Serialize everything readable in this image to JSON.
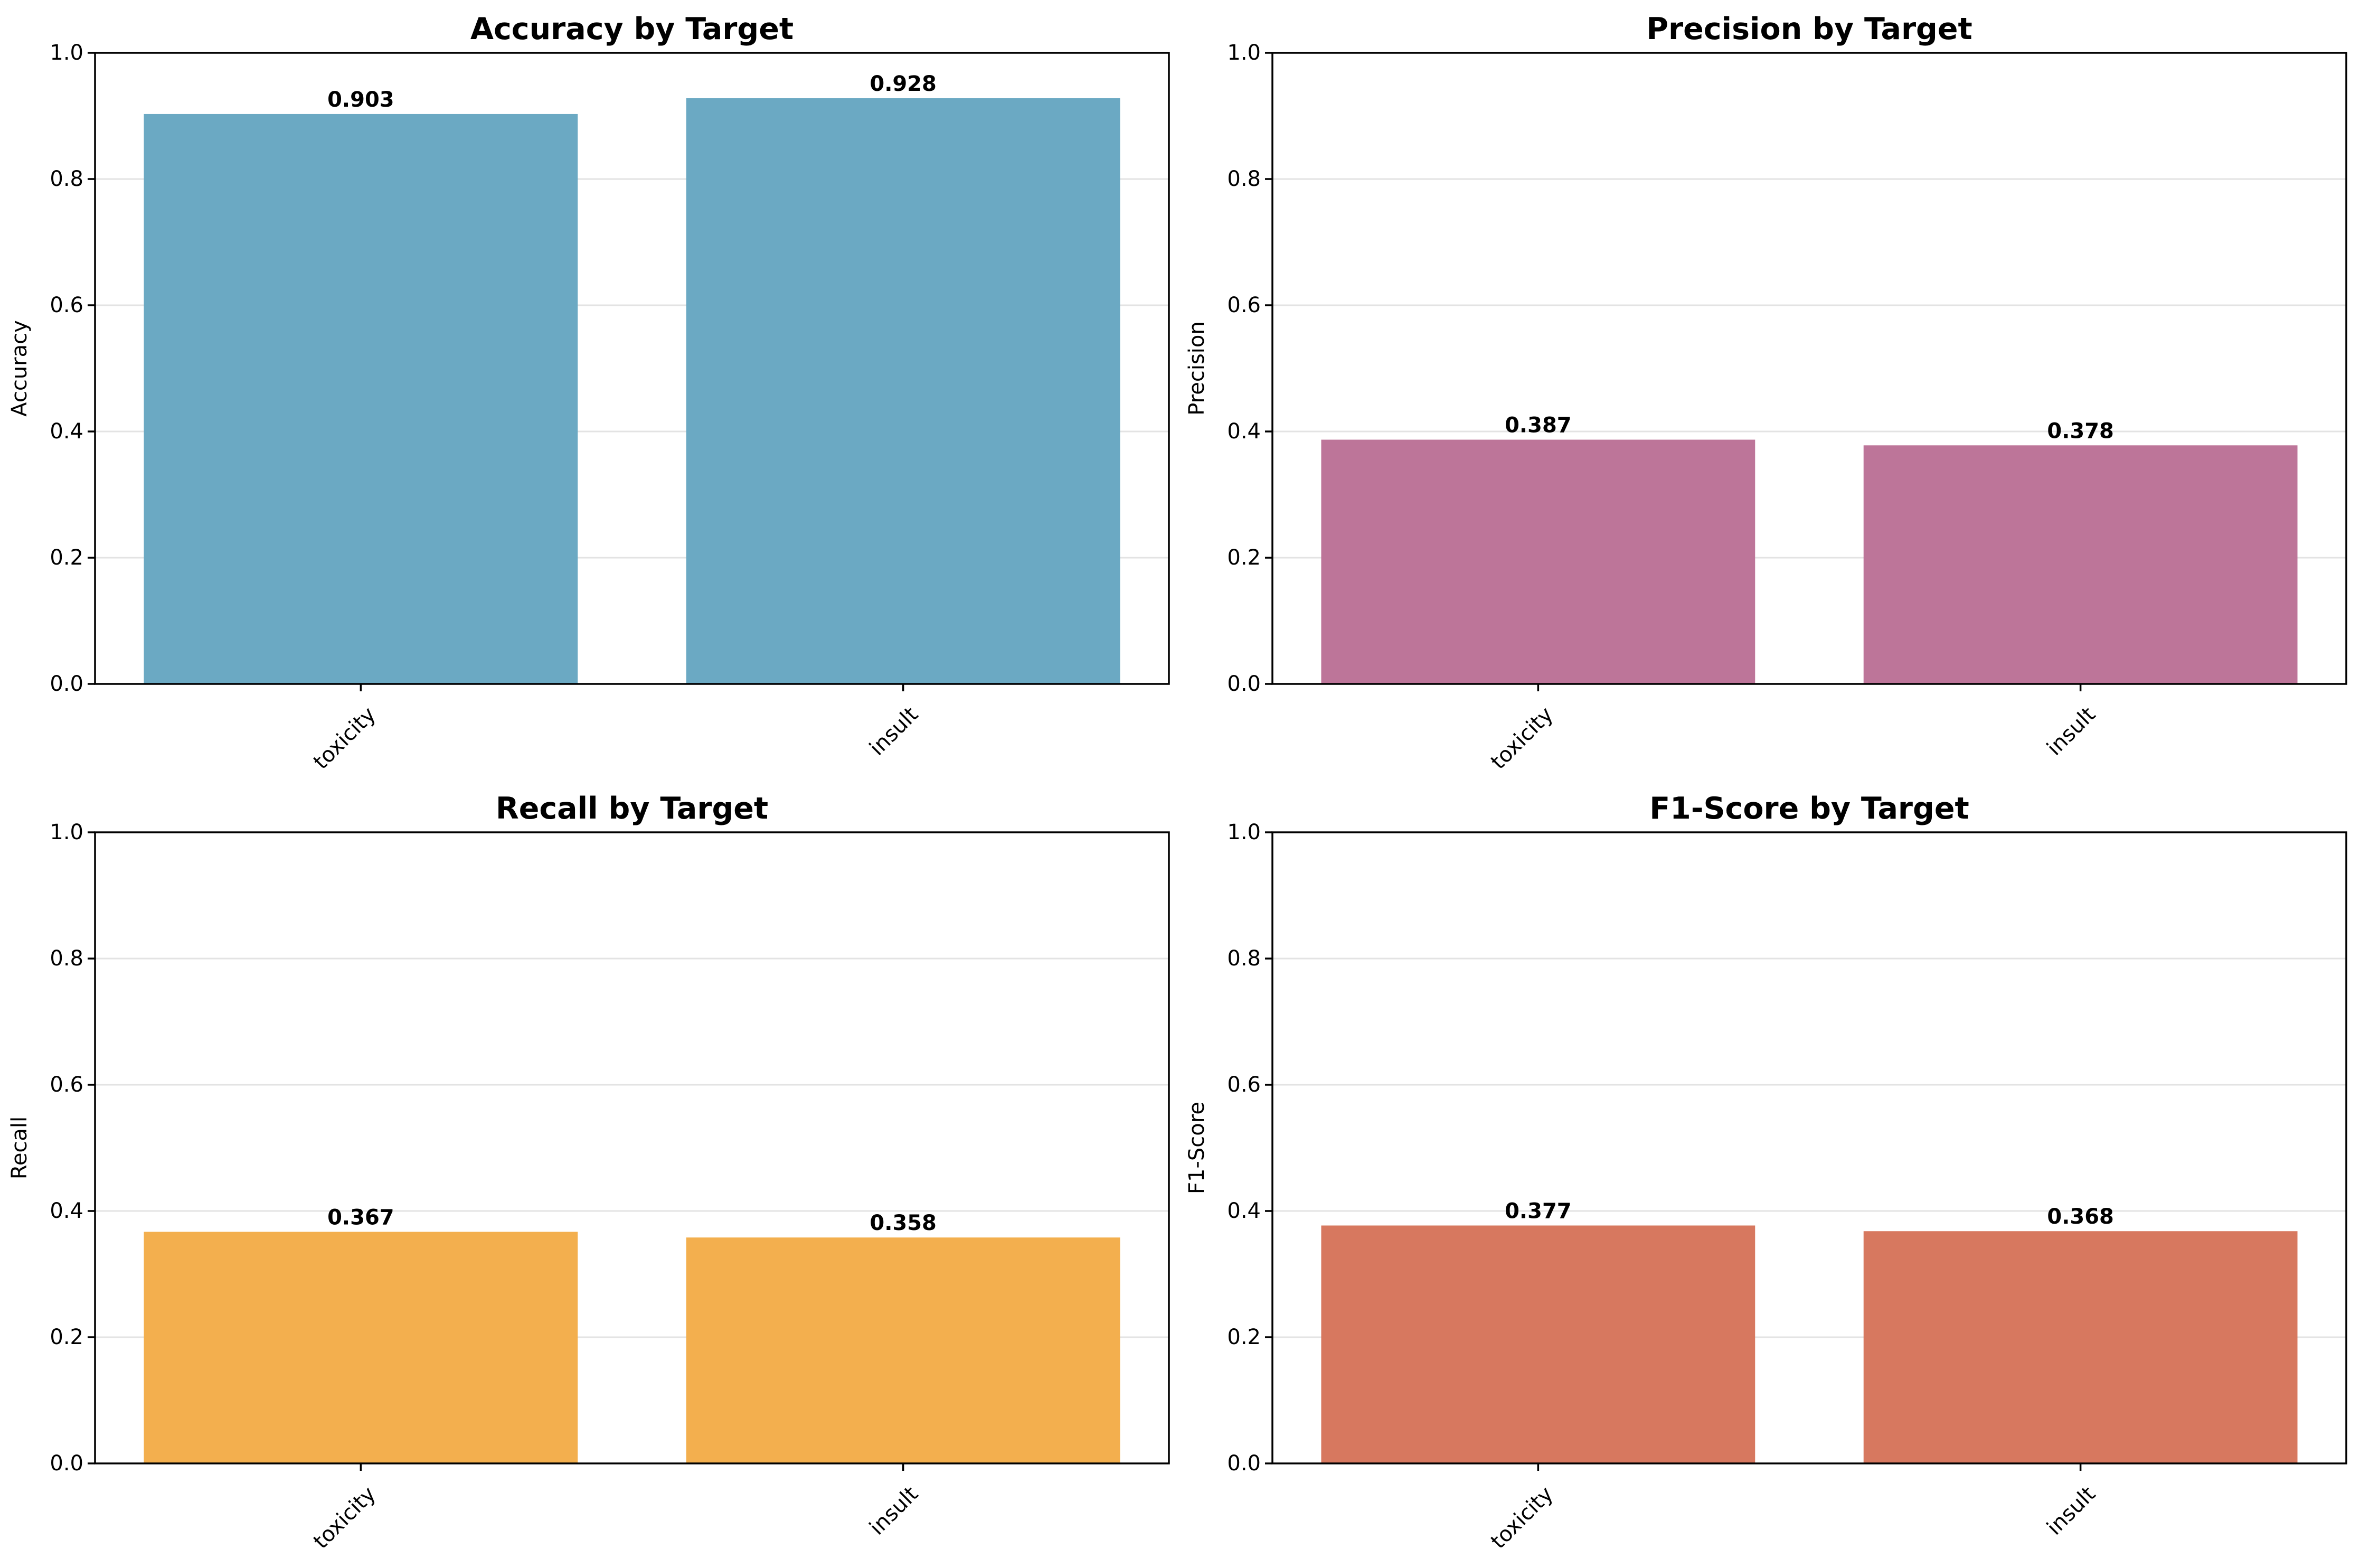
{
  "chart_data": [
    {
      "type": "bar",
      "title": "Accuracy by Target",
      "xlabel": "",
      "ylabel": "Accuracy",
      "categories": [
        "toxicity",
        "insult"
      ],
      "values": [
        0.903,
        0.928
      ],
      "value_labels": [
        "0.903",
        "0.928"
      ],
      "ylim": [
        0,
        1.0
      ],
      "yticks": [
        "0.0",
        "0.2",
        "0.4",
        "0.6",
        "0.8",
        "1.0"
      ],
      "color": "#6ba9c3",
      "grid": "y"
    },
    {
      "type": "bar",
      "title": "Precision by Target",
      "xlabel": "",
      "ylabel": "Precision",
      "categories": [
        "toxicity",
        "insult"
      ],
      "values": [
        0.387,
        0.378
      ],
      "value_labels": [
        "0.387",
        "0.378"
      ],
      "ylim": [
        0,
        1.0
      ],
      "yticks": [
        "0.0",
        "0.2",
        "0.4",
        "0.6",
        "0.8",
        "1.0"
      ],
      "color": "#bd7599",
      "grid": "y"
    },
    {
      "type": "bar",
      "title": "Recall by Target",
      "xlabel": "",
      "ylabel": "Recall",
      "categories": [
        "toxicity",
        "insult"
      ],
      "values": [
        0.367,
        0.358
      ],
      "value_labels": [
        "0.367",
        "0.358"
      ],
      "ylim": [
        0,
        1.0
      ],
      "yticks": [
        "0.0",
        "0.2",
        "0.4",
        "0.6",
        "0.8",
        "1.0"
      ],
      "color": "#f3af4e",
      "grid": "y"
    },
    {
      "type": "bar",
      "title": "F1-Score by Target",
      "xlabel": "",
      "ylabel": "F1-Score",
      "categories": [
        "toxicity",
        "insult"
      ],
      "values": [
        0.377,
        0.368
      ],
      "value_labels": [
        "0.377",
        "0.368"
      ],
      "ylim": [
        0,
        1.0
      ],
      "yticks": [
        "0.0",
        "0.2",
        "0.4",
        "0.6",
        "0.8",
        "1.0"
      ],
      "color": "#d7785f",
      "grid": "y"
    }
  ]
}
